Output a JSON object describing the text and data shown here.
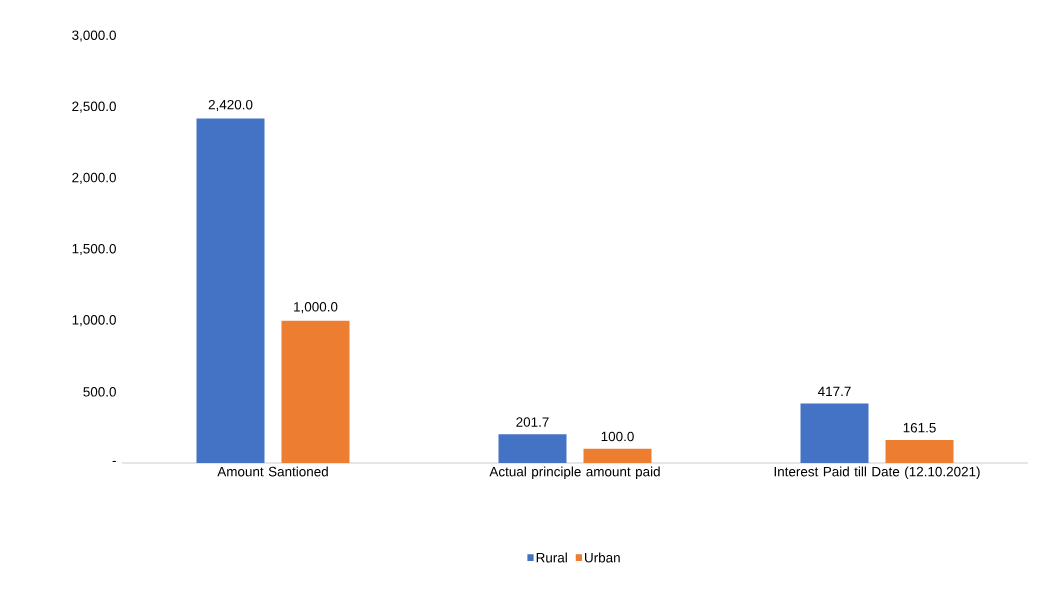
{
  "chart_data": {
    "type": "bar",
    "categories": [
      "Amount Santioned",
      "Actual principle amount paid",
      "Interest Paid till Date (12.10.2021)"
    ],
    "series": [
      {
        "name": "Rural",
        "color": "#4472c4",
        "values": [
          2420.0,
          201.7,
          417.7
        ],
        "value_labels": [
          "2,420.0",
          "201.7",
          "417.7"
        ]
      },
      {
        "name": "Urban",
        "color": "#ed7d31",
        "values": [
          1000.0,
          100.0,
          161.5
        ],
        "value_labels": [
          "1,000.0",
          "100.0",
          "161.5"
        ]
      }
    ],
    "ylim": [
      0,
      3000
    ],
    "yticks": [
      {
        "value": 0,
        "label": "-"
      },
      {
        "value": 500,
        "label": "500.0"
      },
      {
        "value": 1000,
        "label": "1,000.0"
      },
      {
        "value": 1500,
        "label": "1,500.0"
      },
      {
        "value": 2000,
        "label": "2,000.0"
      },
      {
        "value": 2500,
        "label": "2,500.0"
      },
      {
        "value": 3000,
        "label": "3,000.0"
      }
    ],
    "grid": false,
    "legend": "bottom"
  }
}
